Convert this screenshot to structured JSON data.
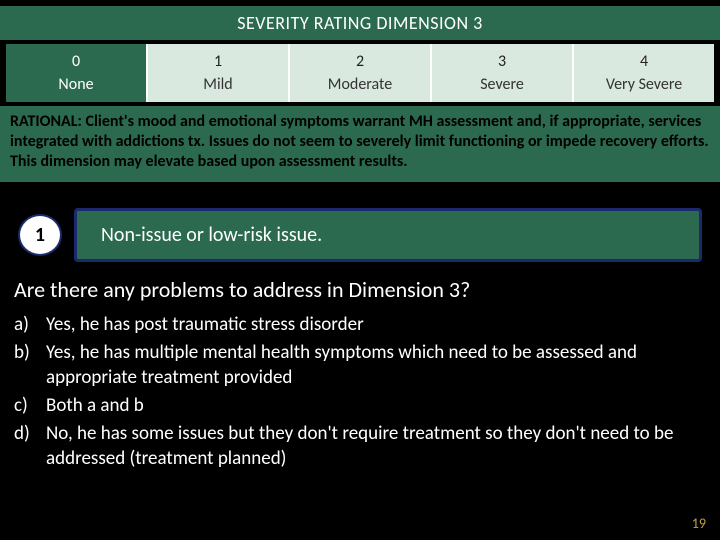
{
  "title": "SEVERITY RATING DIMENSION 3",
  "scale": [
    {
      "num": "0",
      "label": "None"
    },
    {
      "num": "1",
      "label": "Mild"
    },
    {
      "num": "2",
      "label": "Moderate"
    },
    {
      "num": "3",
      "label": "Severe"
    },
    {
      "num": "4",
      "label": "Very Severe"
    }
  ],
  "rationale": "RATIONAL: Client's mood and emotional symptoms warrant MH assessment and, if appropriate, services integrated with addictions tx. Issues do not seem to severely limit functioning or impede recovery efforts. This dimension may elevate based upon assessment results.",
  "callout": {
    "badge": "1",
    "text": "Non-issue or low-risk issue."
  },
  "question": "Are there any problems to address in Dimension 3?",
  "options": [
    {
      "key": "a)",
      "text": "Yes, he has post traumatic stress disorder"
    },
    {
      "key": "b)",
      "text": "Yes, he has multiple mental health symptoms which need to be assessed and appropriate treatment provided"
    },
    {
      "key": "c)",
      "text": "Both a and b"
    },
    {
      "key": "d)",
      "text": "No, he has some issues but they don't require treatment so they don't need to be addressed (treatment planned)"
    }
  ],
  "page_number": "19",
  "colors": {
    "band_green": "#2b6a4f",
    "scale_bg": "#d9e9e0",
    "callout_border": "#1a2a6c",
    "pagenum": "#bfa24a",
    "background": "#000000",
    "text_white": "#ffffff"
  }
}
